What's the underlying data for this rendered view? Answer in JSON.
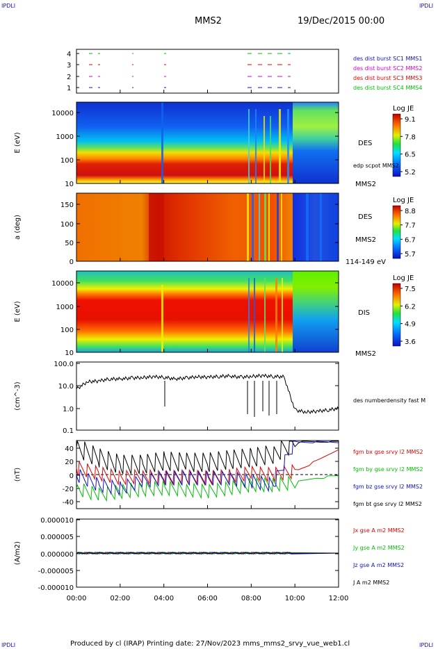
{
  "header": {
    "logo_left": "IPDLI",
    "logo_right": "IPDLI",
    "title": "MMS2",
    "date": "19/Dec/2015 00:00"
  },
  "footer": {
    "produced_by": "Produced by cl (IRAP)   Printing date: 27/Nov/2023   mms_mms2_srvy_vue_web1.cl",
    "logo_left": "IPDLI",
    "logo_right": "IPDLI"
  },
  "panels": {
    "burst": {
      "yticks": [
        "4",
        "3",
        "2",
        "1"
      ],
      "labels": [
        {
          "text": "des dist burst SC1 MMS1",
          "color": "#1010c0"
        },
        {
          "text": "des dist burst SC2 MMS2",
          "color": "#d000d0"
        },
        {
          "text": "des dist burst SC3 MMS3",
          "color": "#e00000"
        },
        {
          "text": "des dist burst SC4 MMS4",
          "color": "#00c000"
        }
      ]
    },
    "des_energy": {
      "ylabel": "E (eV)",
      "yticks": [
        "10000",
        "1000",
        "100",
        "10"
      ],
      "colorbar_title": "Log JE",
      "colorbar_ticks": [
        "9.1",
        "7.8",
        "6.5",
        "5.2"
      ],
      "instrument": "DES",
      "overlay": "edp scpot MMS2",
      "sc": "MMS2"
    },
    "des_pitch": {
      "ylabel": "a (deg)",
      "yticks": [
        "150",
        "100",
        "50",
        "0"
      ],
      "colorbar_title": "Log JE",
      "colorbar_ticks": [
        "8.8",
        "7.7",
        "6.7",
        "5.7"
      ],
      "instrument": "DES",
      "sc": "MMS2",
      "energy_range": "114-149 eV"
    },
    "dis_energy": {
      "ylabel": "E (eV)",
      "yticks": [
        "10000",
        "1000",
        "100",
        "10"
      ],
      "colorbar_title": "Log JE",
      "colorbar_ticks": [
        "7.5",
        "6.2",
        "4.9",
        "3.6"
      ],
      "instrument": "DIS",
      "sc": "MMS2"
    },
    "density": {
      "ylabel": "(cm^-3)",
      "yticks": [
        "100.0",
        "10.0",
        "1.0",
        "0.1"
      ],
      "series_label": "des numberdensity fast M"
    },
    "bfield": {
      "ylabel": "(nT)",
      "yticks": [
        "40",
        "20",
        "0",
        "-20",
        "-40"
      ],
      "series": [
        {
          "text": "fgm bx gse srvy l2 MMS2",
          "color": "#e00000"
        },
        {
          "text": "fgm by gse srvy l2 MMS2",
          "color": "#00c000"
        },
        {
          "text": "fgm bz gse srvy l2 MMS2",
          "color": "#1010c0"
        },
        {
          "text": "fgm bt gse srvy l2 MMS2",
          "color": "#000000"
        }
      ]
    },
    "current": {
      "ylabel": "(A/m2)",
      "yticks": [
        "0.000010",
        "0.000005",
        "0.000000",
        "-0.000005",
        "-0.000010"
      ],
      "series": [
        {
          "text": "Jx gse A m2 MMS2",
          "color": "#e00000"
        },
        {
          "text": "Jy gse A m2 MMS2",
          "color": "#00c000"
        },
        {
          "text": "Jz gse A m2 MMS2",
          "color": "#1010c0"
        },
        {
          "text": "J A m2 MMS2",
          "color": "#000000"
        }
      ]
    },
    "time_axis": {
      "ticks": [
        "00:00",
        "02:00",
        "04:00",
        "06:00",
        "08:00",
        "10:00",
        "12:00"
      ]
    }
  },
  "chart_data": [
    {
      "type": "line",
      "title": "MMS2",
      "subtitle": "19/Dec/2015 00:00",
      "xlabel": "",
      "ylabel": "(cm^-3)",
      "yscale": "log",
      "ylim": [
        0.1,
        100.0
      ],
      "xlim": [
        "00:00",
        "12:00"
      ],
      "x": [
        "00:00",
        "00:30",
        "01:00",
        "01:30",
        "02:00",
        "02:30",
        "03:00",
        "03:30",
        "04:00",
        "04:30",
        "05:00",
        "05:30",
        "06:00",
        "06:30",
        "07:00",
        "07:30",
        "08:00",
        "08:30",
        "09:00",
        "09:30",
        "10:00",
        "10:30",
        "11:00",
        "11:30",
        "12:00"
      ],
      "series": [
        {
          "name": "des numberdensity fast M",
          "values": [
            7,
            15,
            16,
            20,
            20,
            22,
            23,
            25,
            24,
            20,
            22,
            25,
            24,
            26,
            27,
            24,
            26,
            28,
            26,
            25,
            0.8,
            0.65,
            0.7,
            0.8,
            0.95
          ]
        }
      ]
    },
    {
      "type": "line",
      "ylabel": "(nT)",
      "ylim": [
        -50,
        50
      ],
      "xlim": [
        "00:00",
        "12:00"
      ],
      "x": [
        "00:00",
        "01:00",
        "02:00",
        "03:00",
        "04:00",
        "05:00",
        "06:00",
        "07:00",
        "08:00",
        "09:00",
        "10:00",
        "11:00",
        "12:00"
      ],
      "series": [
        {
          "name": "fgm bx gse srvy l2 MMS2",
          "values": [
            10,
            2,
            -5,
            -2,
            -5,
            -3,
            -5,
            -2,
            2,
            0,
            5,
            20,
            38
          ]
        },
        {
          "name": "fgm by gse srvy l2 MMS2",
          "values": [
            -20,
            -30,
            -25,
            -22,
            -20,
            -22,
            -25,
            -20,
            -15,
            -15,
            -12,
            -5,
            -2
          ]
        },
        {
          "name": "fgm bz gse srvy l2 MMS2",
          "values": [
            0,
            -15,
            -20,
            -10,
            -5,
            -5,
            -5,
            -5,
            -10,
            -15,
            48,
            48,
            48
          ]
        },
        {
          "name": "fgm bt gse srvy l2 MMS2",
          "values": [
            40,
            25,
            15,
            15,
            20,
            18,
            18,
            22,
            25,
            30,
            48,
            48,
            50
          ]
        }
      ]
    },
    {
      "type": "line",
      "ylabel": "(A/m2)",
      "ylim": [
        -1e-05,
        1e-05
      ],
      "xlim": [
        "00:00",
        "12:00"
      ],
      "x": [
        "00:00",
        "02:00",
        "04:00",
        "06:00",
        "08:00",
        "10:00",
        "12:00"
      ],
      "series": [
        {
          "name": "Jx gse A m2 MMS2",
          "values": [
            0,
            0,
            0,
            0,
            0,
            0,
            0
          ]
        },
        {
          "name": "Jy gse A m2 MMS2",
          "values": [
            0,
            0,
            0,
            0,
            0,
            0,
            0
          ]
        },
        {
          "name": "Jz gse A m2 MMS2",
          "values": [
            0,
            0,
            0,
            0,
            0,
            0,
            0
          ]
        },
        {
          "name": "J A m2 MMS2",
          "values": [
            0,
            0,
            0,
            0,
            0,
            0,
            0
          ]
        }
      ]
    },
    {
      "type": "heatmap",
      "title": "DES",
      "ylabel": "E (eV)",
      "yscale": "log",
      "ylim": [
        10,
        30000
      ],
      "colorbar_label": "Log JE",
      "colorbar_range": [
        5.2,
        9.1
      ]
    },
    {
      "type": "heatmap",
      "title": "DES",
      "ylabel": "a (deg)",
      "ylim": [
        0,
        180
      ],
      "colorbar_label": "Log JE",
      "colorbar_range": [
        5.7,
        8.8
      ]
    },
    {
      "type": "heatmap",
      "title": "DIS",
      "ylabel": "E (eV)",
      "yscale": "log",
      "ylim": [
        10,
        30000
      ],
      "colorbar_label": "Log JE",
      "colorbar_range": [
        3.6,
        7.5
      ]
    }
  ]
}
